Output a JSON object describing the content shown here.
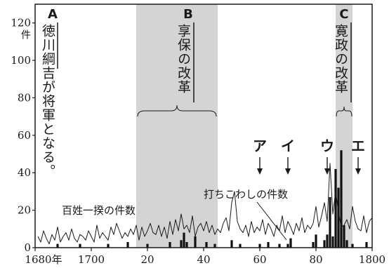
{
  "chart_data": {
    "type": "line",
    "xlim": [
      1680,
      1800
    ],
    "ylim": [
      0,
      130
    ],
    "x_ticks": [
      {
        "value": 1680,
        "label": "1680年"
      },
      {
        "value": 1700,
        "label": "1700"
      },
      {
        "value": 1720,
        "label": "20"
      },
      {
        "value": 1740,
        "label": "40"
      },
      {
        "value": 1760,
        "label": "60"
      },
      {
        "value": 1780,
        "label": "80"
      },
      {
        "value": 1800,
        "label": "1800"
      }
    ],
    "y_ticks": [
      {
        "value": 0,
        "label": "0"
      },
      {
        "value": 20,
        "label": "20"
      },
      {
        "value": 40,
        "label": "40"
      },
      {
        "value": 60,
        "label": "60"
      },
      {
        "value": 80,
        "label": "80"
      },
      {
        "value": 100,
        "label": "100"
      },
      {
        "value": 120,
        "label": "120"
      }
    ],
    "y_unit": "件",
    "shaded_periods": [
      {
        "id": "B",
        "start": 1716,
        "end": 1745,
        "label": "享保の改革"
      },
      {
        "id": "C",
        "start": 1787,
        "end": 1793,
        "label": "寛政の改革"
      }
    ],
    "top_markers": [
      {
        "letter": "A",
        "x": 1680,
        "text": "徳川綱吉が将軍となる。"
      },
      {
        "letter": "B",
        "x": 1730
      },
      {
        "letter": "C",
        "x": 1790
      }
    ],
    "arrows": [
      {
        "label": "ア",
        "x": 1760
      },
      {
        "label": "イ",
        "x": 1770
      },
      {
        "label": "ウ",
        "x": 1784
      },
      {
        "label": "エ",
        "x": 1795
      }
    ],
    "series": [
      {
        "name": "百姓一揆の件数",
        "style": "line",
        "x": [
          1681,
          1682,
          1683,
          1684,
          1685,
          1686,
          1687,
          1688,
          1689,
          1690,
          1691,
          1692,
          1693,
          1694,
          1695,
          1696,
          1697,
          1698,
          1699,
          1700,
          1701,
          1702,
          1703,
          1704,
          1705,
          1706,
          1707,
          1708,
          1709,
          1710,
          1711,
          1712,
          1713,
          1714,
          1715,
          1716,
          1717,
          1718,
          1719,
          1720,
          1721,
          1722,
          1723,
          1724,
          1725,
          1726,
          1727,
          1728,
          1729,
          1730,
          1731,
          1732,
          1733,
          1734,
          1735,
          1736,
          1737,
          1738,
          1739,
          1740,
          1741,
          1742,
          1743,
          1744,
          1745,
          1746,
          1747,
          1748,
          1749,
          1750,
          1751,
          1752,
          1753,
          1754,
          1755,
          1756,
          1757,
          1758,
          1759,
          1760,
          1761,
          1762,
          1763,
          1764,
          1765,
          1766,
          1767,
          1768,
          1769,
          1770,
          1771,
          1772,
          1773,
          1774,
          1775,
          1776,
          1777,
          1778,
          1779,
          1780,
          1781,
          1782,
          1783,
          1784,
          1785,
          1786,
          1787,
          1788,
          1789,
          1790,
          1791,
          1792,
          1793,
          1794,
          1795,
          1796,
          1797,
          1798,
          1799,
          1800
        ],
        "y": [
          6,
          3,
          9,
          5,
          2,
          7,
          4,
          11,
          3,
          6,
          8,
          4,
          10,
          5,
          3,
          7,
          6,
          4,
          9,
          6,
          3,
          12,
          5,
          8,
          6,
          4,
          11,
          7,
          13,
          9,
          5,
          8,
          6,
          10,
          7,
          12,
          4,
          11,
          6,
          9,
          13,
          8,
          7,
          12,
          6,
          11,
          5,
          14,
          7,
          15,
          9,
          18,
          10,
          12,
          8,
          17,
          6,
          11,
          13,
          9,
          14,
          8,
          12,
          7,
          10,
          8,
          13,
          16,
          9,
          24,
          30,
          14,
          10,
          8,
          12,
          6,
          14,
          8,
          11,
          9,
          15,
          7,
          13,
          10,
          6,
          12,
          9,
          17,
          8,
          14,
          11,
          7,
          13,
          9,
          16,
          8,
          12,
          10,
          13,
          22,
          11,
          17,
          24,
          14,
          45,
          18,
          30,
          19,
          11,
          12,
          15,
          10,
          22,
          14,
          10,
          9,
          17,
          8,
          14,
          16
        ]
      },
      {
        "name": "打ちこわしの件数",
        "style": "bar",
        "x": [
          1688,
          1696,
          1706,
          1713,
          1720,
          1728,
          1732,
          1733,
          1734,
          1737,
          1741,
          1744,
          1750,
          1753,
          1760,
          1763,
          1767,
          1770,
          1771,
          1779,
          1780,
          1783,
          1784,
          1785,
          1786,
          1787,
          1788,
          1789,
          1790,
          1791,
          1793,
          1798
        ],
        "y": [
          2,
          2,
          2,
          3,
          2,
          3,
          4,
          8,
          3,
          6,
          3,
          2,
          4,
          2,
          2,
          3,
          2,
          2,
          5,
          3,
          7,
          4,
          7,
          27,
          6,
          42,
          32,
          52,
          12,
          4,
          2,
          3
        ]
      }
    ]
  }
}
